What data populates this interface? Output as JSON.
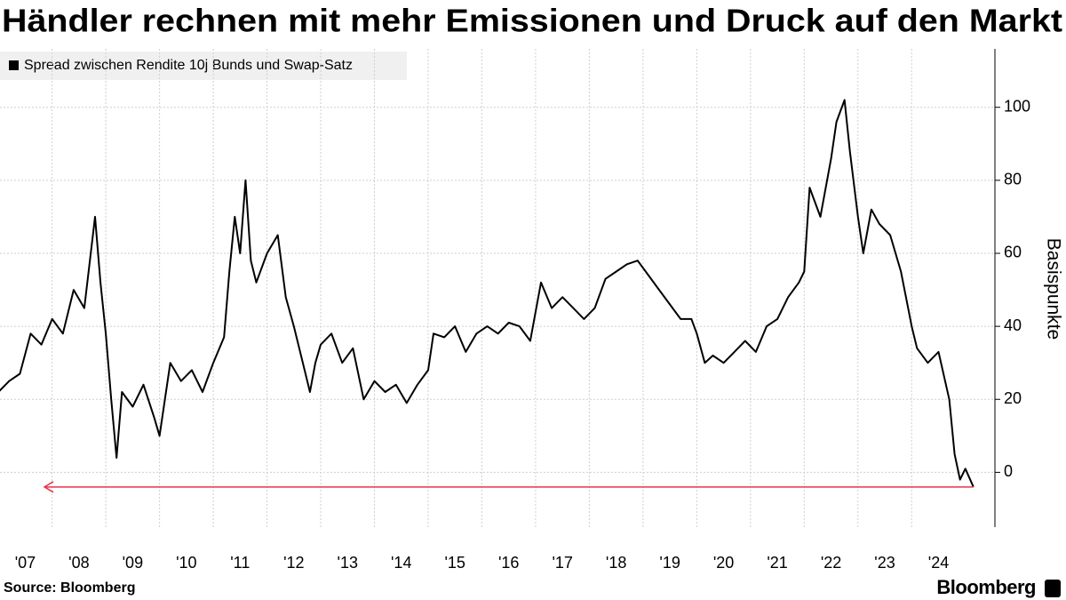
{
  "chart_data": {
    "type": "line",
    "title": "Händler rechnen mit mehr Emissionen und Druck auf den Markt",
    "y_label": "Basispunkte",
    "source": "Source: Bloomberg",
    "brand": "Bloomberg",
    "series": [
      {
        "name": "Spread zwischen Rendite 10j Bunds und Swap-Satz",
        "color": "#000000",
        "x": [
          2007.0,
          2007.2,
          2007.4,
          2007.6,
          2007.8,
          2008.0,
          2008.2,
          2008.4,
          2008.6,
          2008.8,
          2008.9,
          2009.0,
          2009.1,
          2009.2,
          2009.3,
          2009.5,
          2009.7,
          2009.9,
          2010.0,
          2010.2,
          2010.4,
          2010.6,
          2010.8,
          2011.0,
          2011.2,
          2011.3,
          2011.4,
          2011.5,
          2011.6,
          2011.7,
          2011.8,
          2012.0,
          2012.2,
          2012.35,
          2012.5,
          2012.7,
          2012.8,
          2012.9,
          2013.0,
          2013.2,
          2013.4,
          2013.6,
          2013.8,
          2014.0,
          2014.2,
          2014.4,
          2014.6,
          2014.8,
          2015.0,
          2015.1,
          2015.3,
          2015.5,
          2015.7,
          2015.9,
          2016.1,
          2016.3,
          2016.5,
          2016.7,
          2016.9,
          2017.1,
          2017.3,
          2017.5,
          2017.7,
          2017.9,
          2018.1,
          2018.3,
          2018.5,
          2018.7,
          2018.9,
          2019.1,
          2019.3,
          2019.5,
          2019.7,
          2019.9,
          2020.0,
          2020.15,
          2020.3,
          2020.5,
          2020.7,
          2020.9,
          2021.1,
          2021.3,
          2021.5,
          2021.7,
          2021.9,
          2022.0,
          2022.1,
          2022.3,
          2022.5,
          2022.6,
          2022.75,
          2022.85,
          2023.0,
          2023.1,
          2023.25,
          2023.4,
          2023.6,
          2023.8,
          2024.0,
          2024.1,
          2024.3,
          2024.5,
          2024.7,
          2024.8,
          2024.9,
          2025.0,
          2025.15
        ],
        "values": [
          22,
          25,
          27,
          38,
          35,
          42,
          38,
          50,
          45,
          70,
          52,
          38,
          20,
          4,
          22,
          18,
          24,
          15,
          10,
          30,
          25,
          28,
          22,
          30,
          37,
          55,
          70,
          60,
          80,
          58,
          52,
          60,
          65,
          48,
          40,
          28,
          22,
          30,
          35,
          38,
          30,
          34,
          20,
          25,
          22,
          24,
          19,
          24,
          28,
          38,
          37,
          40,
          33,
          38,
          40,
          38,
          41,
          40,
          36,
          52,
          45,
          48,
          45,
          42,
          45,
          53,
          55,
          57,
          58,
          54,
          50,
          46,
          42,
          42,
          38,
          30,
          32,
          30,
          33,
          36,
          33,
          40,
          42,
          48,
          52,
          55,
          78,
          70,
          86,
          96,
          102,
          88,
          70,
          60,
          72,
          68,
          65,
          55,
          40,
          34,
          30,
          33,
          20,
          5,
          -2,
          1,
          -4
        ]
      }
    ],
    "xlim": [
      2007.03,
      2025.55
    ],
    "xticks": [
      {
        "value": 2007,
        "label": "'07"
      },
      {
        "value": 2008,
        "label": "'08"
      },
      {
        "value": 2009,
        "label": "'09"
      },
      {
        "value": 2010,
        "label": "'10"
      },
      {
        "value": 2011,
        "label": "'11"
      },
      {
        "value": 2012,
        "label": "'12"
      },
      {
        "value": 2013,
        "label": "'13"
      },
      {
        "value": 2014,
        "label": "'14"
      },
      {
        "value": 2015,
        "label": "'15"
      },
      {
        "value": 2016,
        "label": "'16"
      },
      {
        "value": 2017,
        "label": "'17"
      },
      {
        "value": 2018,
        "label": "'18"
      },
      {
        "value": 2019,
        "label": "'19"
      },
      {
        "value": 2020,
        "label": "'20"
      },
      {
        "value": 2021,
        "label": "'21"
      },
      {
        "value": 2022,
        "label": "'22"
      },
      {
        "value": 2023,
        "label": "'23"
      },
      {
        "value": 2024,
        "label": "'24"
      }
    ],
    "ylim": [
      -15,
      116
    ],
    "yticks": [
      0,
      20,
      40,
      60,
      80,
      100
    ],
    "grid": true
  }
}
